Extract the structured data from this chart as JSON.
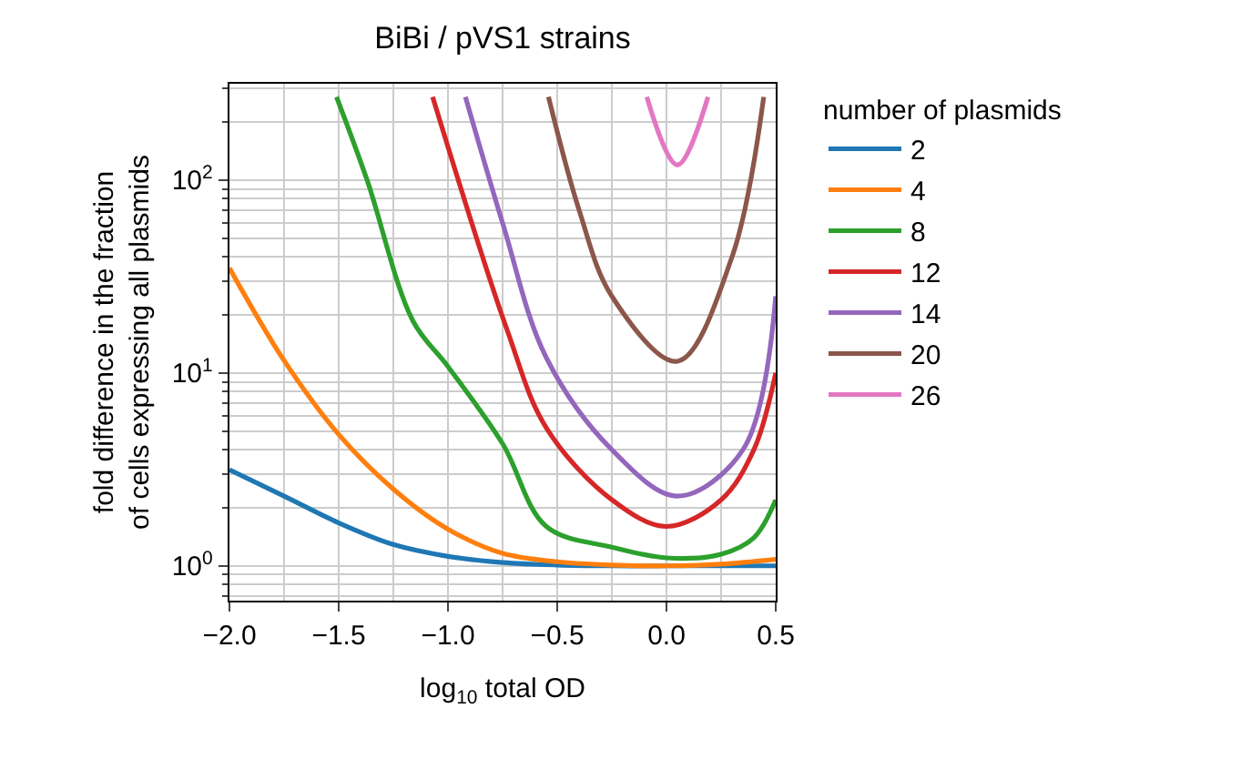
{
  "chart_data": {
    "type": "line",
    "title": "BiBi / pVS1 strains",
    "xlabel": "log$_{10}$ total OD",
    "ylabel": "fold difference in the fraction\nof cells expressing all plasmids",
    "legend_title": "number of plasmids",
    "legend": "right",
    "grid": true,
    "log": "y",
    "marker": "none",
    "line_style": "solid",
    "xlim": [
      -2.0,
      0.5
    ],
    "xticks": [
      {
        "value": -2.0,
        "label": "−2.0"
      },
      {
        "value": -1.5,
        "label": "−1.5"
      },
      {
        "value": -1.0,
        "label": "−1.0"
      },
      {
        "value": -0.5,
        "label": "−0.5"
      },
      {
        "value": 0.0,
        "label": "0.0"
      },
      {
        "value": 0.5,
        "label": "0.5"
      }
    ],
    "ylim": [
      0.66,
      316
    ],
    "yticks": [
      {
        "value": 1,
        "label": "10$^{0}$"
      },
      {
        "value": 10,
        "label": "10$^{1}$"
      },
      {
        "value": 100,
        "label": "10$^{2}$"
      }
    ],
    "series": [
      {
        "name": "2",
        "color": "#1f77b4",
        "x": [
          -2,
          -1.75,
          -1.5,
          -1.25,
          -1,
          -0.75,
          -0.5,
          -0.25,
          0,
          0.25,
          0.5
        ],
        "values": [
          3.15,
          2.3,
          1.67,
          1.29,
          1.12,
          1.04,
          1.01,
          1.0,
          1.0,
          1.0,
          1.0
        ]
      },
      {
        "name": "4",
        "color": "#ff7f0e",
        "x": [
          -2,
          -1.75,
          -1.5,
          -1.25,
          -1,
          -0.75,
          -0.5,
          -0.25,
          0,
          0.25,
          0.5
        ],
        "values": [
          35,
          11.6,
          4.8,
          2.5,
          1.55,
          1.16,
          1.05,
          1.01,
          1.0,
          1.02,
          1.08
        ]
      },
      {
        "name": "8",
        "color": "#2ca02c",
        "x": [
          -1.51,
          -1.37,
          -1.16,
          -1.0,
          -0.75,
          -0.55,
          -0.25,
          0,
          0.25,
          0.4,
          0.5
        ],
        "values": [
          270,
          100,
          18.6,
          10.8,
          4.3,
          1.6,
          1.25,
          1.1,
          1.15,
          1.4,
          2.2
        ]
      },
      {
        "name": "12",
        "color": "#d62728",
        "x": [
          -1.07,
          -0.73,
          -0.55,
          -0.25,
          0,
          0.25,
          0.4,
          0.5
        ],
        "values": [
          270,
          16.8,
          5.2,
          2.2,
          1.6,
          2.2,
          4,
          10
        ]
      },
      {
        "name": "14",
        "color": "#9467bd",
        "x": [
          -0.92,
          -0.75,
          -0.55,
          -0.25,
          0.05,
          0.35,
          0.5
        ],
        "values": [
          270,
          60,
          12,
          4,
          2.3,
          4,
          25
        ]
      },
      {
        "name": "20",
        "color": "#8c564b",
        "x": [
          -0.54,
          -0.4,
          -0.25,
          0.05,
          0.3,
          0.445
        ],
        "values": [
          270,
          70,
          25,
          11.5,
          40,
          270
        ]
      },
      {
        "name": "26",
        "color": "#e377c2",
        "x": [
          -0.09,
          0.05,
          0.19
        ],
        "values": [
          270,
          120,
          270
        ]
      }
    ]
  }
}
